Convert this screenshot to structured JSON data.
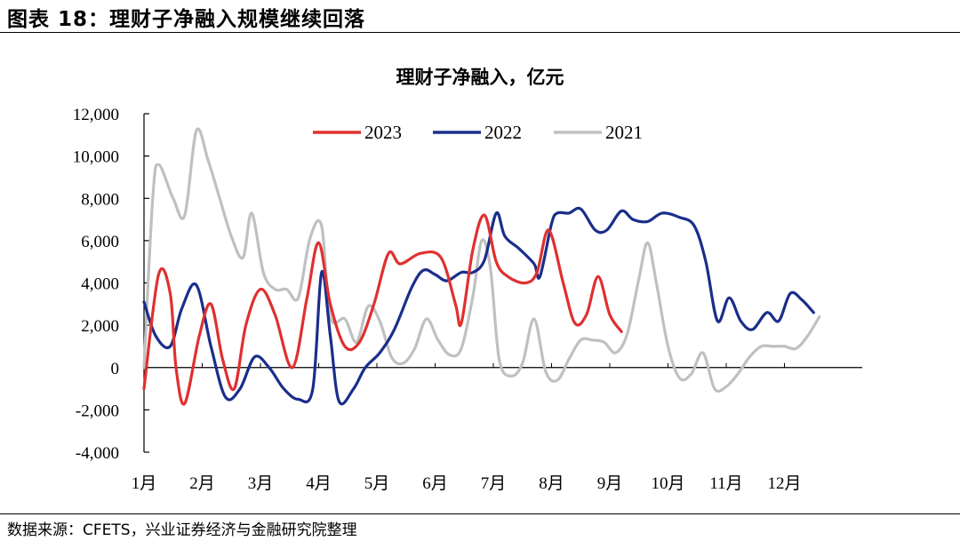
{
  "figure_title": "图表 18：理财子净融入规模继续回落",
  "source_note": "数据来源：CFETS，兴业证券经济与金融研究院整理",
  "chart_data": {
    "type": "line",
    "title": "理财子净融入，亿元",
    "categories": [
      "1月",
      "2月",
      "3月",
      "4月",
      "5月",
      "6月",
      "7月",
      "8月",
      "9月",
      "10月",
      "11月",
      "12月"
    ],
    "ylim": [
      -4000,
      12000
    ],
    "yticks": [
      -4000,
      -2000,
      0,
      2000,
      4000,
      6000,
      8000,
      10000,
      12000
    ],
    "ytick_labels": [
      "-4,000",
      "-2,000",
      "0",
      "2,000",
      "4,000",
      "6,000",
      "8,000",
      "10,000",
      "12,000"
    ],
    "legend_position": "top",
    "series": [
      {
        "name": "2023",
        "color": "#e03030",
        "points": [
          [
            0.0,
            -1000
          ],
          [
            0.25,
            4400
          ],
          [
            0.45,
            3500
          ],
          [
            0.55,
            0
          ],
          [
            0.7,
            -1700
          ],
          [
            0.95,
            1500
          ],
          [
            1.15,
            3000
          ],
          [
            1.35,
            400
          ],
          [
            1.55,
            -1000
          ],
          [
            1.75,
            2000
          ],
          [
            2.0,
            3700
          ],
          [
            2.25,
            2500
          ],
          [
            2.55,
            0
          ],
          [
            2.8,
            3300
          ],
          [
            3.0,
            5900
          ],
          [
            3.2,
            3000
          ],
          [
            3.45,
            1000
          ],
          [
            3.7,
            1200
          ],
          [
            3.95,
            3000
          ],
          [
            4.2,
            5400
          ],
          [
            4.4,
            4900
          ],
          [
            4.75,
            5400
          ],
          [
            5.1,
            5200
          ],
          [
            5.35,
            3000
          ],
          [
            5.45,
            2100
          ],
          [
            5.65,
            5600
          ],
          [
            5.85,
            7200
          ],
          [
            6.05,
            5000
          ],
          [
            6.25,
            4300
          ],
          [
            6.55,
            4000
          ],
          [
            6.75,
            4500
          ],
          [
            6.95,
            6500
          ],
          [
            7.2,
            4000
          ],
          [
            7.4,
            2100
          ],
          [
            7.6,
            2500
          ],
          [
            7.8,
            4300
          ],
          [
            8.0,
            2500
          ],
          [
            8.2,
            1700
          ]
        ]
      },
      {
        "name": "2022",
        "color": "#1a2e8a",
        "points": [
          [
            0.0,
            3100
          ],
          [
            0.2,
            1500
          ],
          [
            0.45,
            1000
          ],
          [
            0.65,
            2800
          ],
          [
            0.9,
            3900
          ],
          [
            1.15,
            1000
          ],
          [
            1.4,
            -1400
          ],
          [
            1.65,
            -1000
          ],
          [
            1.9,
            500
          ],
          [
            2.15,
            0
          ],
          [
            2.4,
            -1000
          ],
          [
            2.65,
            -1500
          ],
          [
            2.9,
            -1000
          ],
          [
            3.05,
            4500
          ],
          [
            3.2,
            1500
          ],
          [
            3.35,
            -1600
          ],
          [
            3.6,
            -1000
          ],
          [
            3.8,
            0
          ],
          [
            4.05,
            700
          ],
          [
            4.3,
            1800
          ],
          [
            4.6,
            3800
          ],
          [
            4.8,
            4600
          ],
          [
            5.0,
            4400
          ],
          [
            5.2,
            4100
          ],
          [
            5.45,
            4500
          ],
          [
            5.65,
            4500
          ],
          [
            5.85,
            5100
          ],
          [
            6.05,
            7300
          ],
          [
            6.2,
            6200
          ],
          [
            6.45,
            5600
          ],
          [
            6.7,
            4900
          ],
          [
            6.8,
            4300
          ],
          [
            7.0,
            6800
          ],
          [
            7.1,
            7300
          ],
          [
            7.3,
            7300
          ],
          [
            7.5,
            7500
          ],
          [
            7.75,
            6500
          ],
          [
            7.95,
            6500
          ],
          [
            8.2,
            7400
          ],
          [
            8.4,
            7000
          ],
          [
            8.65,
            6900
          ],
          [
            8.9,
            7300
          ],
          [
            9.2,
            7100
          ],
          [
            9.45,
            6700
          ],
          [
            9.65,
            5000
          ],
          [
            9.85,
            2200
          ],
          [
            10.05,
            3300
          ],
          [
            10.25,
            2200
          ],
          [
            10.45,
            1800
          ],
          [
            10.7,
            2600
          ],
          [
            10.9,
            2200
          ],
          [
            11.1,
            3500
          ],
          [
            11.3,
            3200
          ],
          [
            11.5,
            2600
          ]
        ]
      },
      {
        "name": "2021",
        "color": "#c0c0c0",
        "points": [
          [
            0.0,
            0
          ],
          [
            0.15,
            8000
          ],
          [
            0.25,
            9600
          ],
          [
            0.5,
            8000
          ],
          [
            0.7,
            7200
          ],
          [
            0.9,
            11200
          ],
          [
            1.1,
            9800
          ],
          [
            1.3,
            8000
          ],
          [
            1.5,
            6200
          ],
          [
            1.7,
            5200
          ],
          [
            1.85,
            7300
          ],
          [
            2.05,
            4500
          ],
          [
            2.25,
            3700
          ],
          [
            2.45,
            3700
          ],
          [
            2.65,
            3300
          ],
          [
            2.85,
            6100
          ],
          [
            3.05,
            6700
          ],
          [
            3.2,
            2400
          ],
          [
            3.45,
            2300
          ],
          [
            3.65,
            1200
          ],
          [
            3.85,
            2900
          ],
          [
            4.05,
            2200
          ],
          [
            4.25,
            500
          ],
          [
            4.45,
            200
          ],
          [
            4.65,
            900
          ],
          [
            4.85,
            2300
          ],
          [
            5.05,
            1300
          ],
          [
            5.25,
            600
          ],
          [
            5.45,
            900
          ],
          [
            5.65,
            3400
          ],
          [
            5.8,
            6000
          ],
          [
            5.95,
            4700
          ],
          [
            6.1,
            400
          ],
          [
            6.3,
            -400
          ],
          [
            6.5,
            200
          ],
          [
            6.7,
            2300
          ],
          [
            6.9,
            -200
          ],
          [
            7.1,
            -600
          ],
          [
            7.3,
            400
          ],
          [
            7.5,
            1300
          ],
          [
            7.7,
            1300
          ],
          [
            7.9,
            1200
          ],
          [
            8.1,
            700
          ],
          [
            8.3,
            1600
          ],
          [
            8.5,
            4200
          ],
          [
            8.65,
            5900
          ],
          [
            8.8,
            4000
          ],
          [
            9.0,
            1000
          ],
          [
            9.2,
            -500
          ],
          [
            9.4,
            -300
          ],
          [
            9.6,
            700
          ],
          [
            9.8,
            -1000
          ],
          [
            10.0,
            -900
          ],
          [
            10.2,
            -300
          ],
          [
            10.4,
            500
          ],
          [
            10.6,
            1000
          ],
          [
            10.8,
            1000
          ],
          [
            11.0,
            1000
          ],
          [
            11.2,
            900
          ],
          [
            11.4,
            1500
          ],
          [
            11.6,
            2400
          ]
        ]
      }
    ]
  }
}
